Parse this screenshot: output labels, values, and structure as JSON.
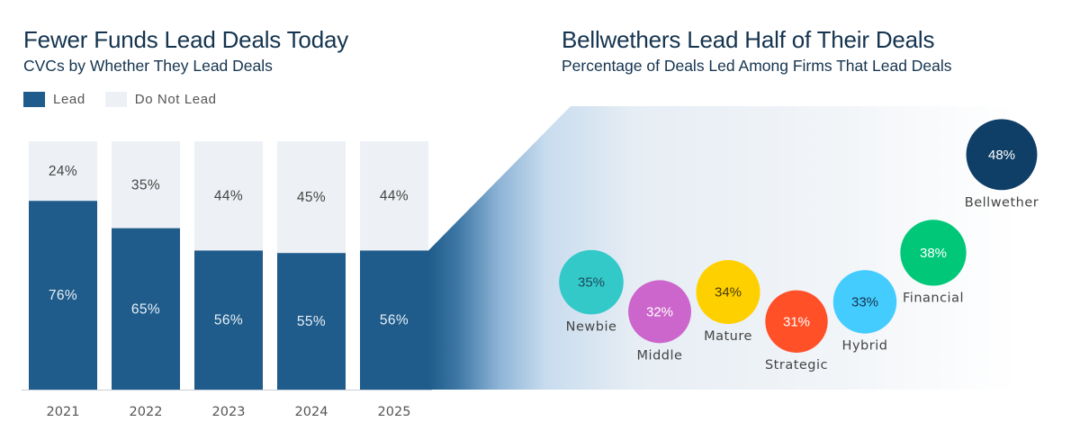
{
  "left": {
    "title": "Fewer Funds Lead Deals Today",
    "subtitle": "CVCs by Whether They Lead Deals",
    "legend": [
      {
        "label": "Lead",
        "color": "#1f5c8b"
      },
      {
        "label": "Do Not Lead",
        "color": "#edf1f5"
      }
    ]
  },
  "right": {
    "title": "Bellwethers Lead Half of Their Deals",
    "subtitle": "Percentage of Deals Led Among Firms That Lead Deals"
  },
  "chart_data": [
    {
      "type": "bar",
      "stacked": true,
      "title": "Fewer Funds Lead Deals Today",
      "subtitle": "CVCs by Whether They Lead Deals",
      "categories": [
        "2021",
        "2022",
        "2023",
        "2024",
        "2025"
      ],
      "series": [
        {
          "name": "Lead",
          "values": [
            76,
            65,
            56,
            55,
            56
          ],
          "labels": [
            "76%",
            "65%",
            "56%",
            "55%",
            "56%"
          ],
          "color": "#1f5c8b",
          "label_color": "#e8f0f7"
        },
        {
          "name": "Do Not Lead",
          "values": [
            24,
            35,
            44,
            45,
            44
          ],
          "labels": [
            "24%",
            "35%",
            "44%",
            "45%",
            "44%"
          ],
          "color": "#edf1f5",
          "label_color": "#444444"
        }
      ],
      "ylim": [
        0,
        100
      ],
      "xlabel": "",
      "ylabel": "",
      "legend": "top-left",
      "grid": false
    },
    {
      "type": "scatter",
      "title": "Bellwethers Lead Half of Their Deals",
      "subtitle": "Percentage of Deals Led Among Firms That Lead Deals",
      "categories": [
        "Newbie",
        "Middle",
        "Mature",
        "Strategic",
        "Hybrid",
        "Financial",
        "Bellwether"
      ],
      "values": [
        35,
        32,
        34,
        31,
        33,
        38,
        48
      ],
      "labels": [
        "35%",
        "32%",
        "34%",
        "31%",
        "33%",
        "38%",
        "48%"
      ],
      "colors": [
        "#33c9c9",
        "#cc66cc",
        "#ffd000",
        "#ff5028",
        "#44ccff",
        "#00c878",
        "#0f3f66"
      ],
      "value_text_colors": [
        "#1d4a5a",
        "#ffffff",
        "#4a3c00",
        "#ffffff",
        "#16324a",
        "#ffffff",
        "#ffffff"
      ],
      "ylim": [
        28,
        50
      ],
      "grid": false
    }
  ]
}
